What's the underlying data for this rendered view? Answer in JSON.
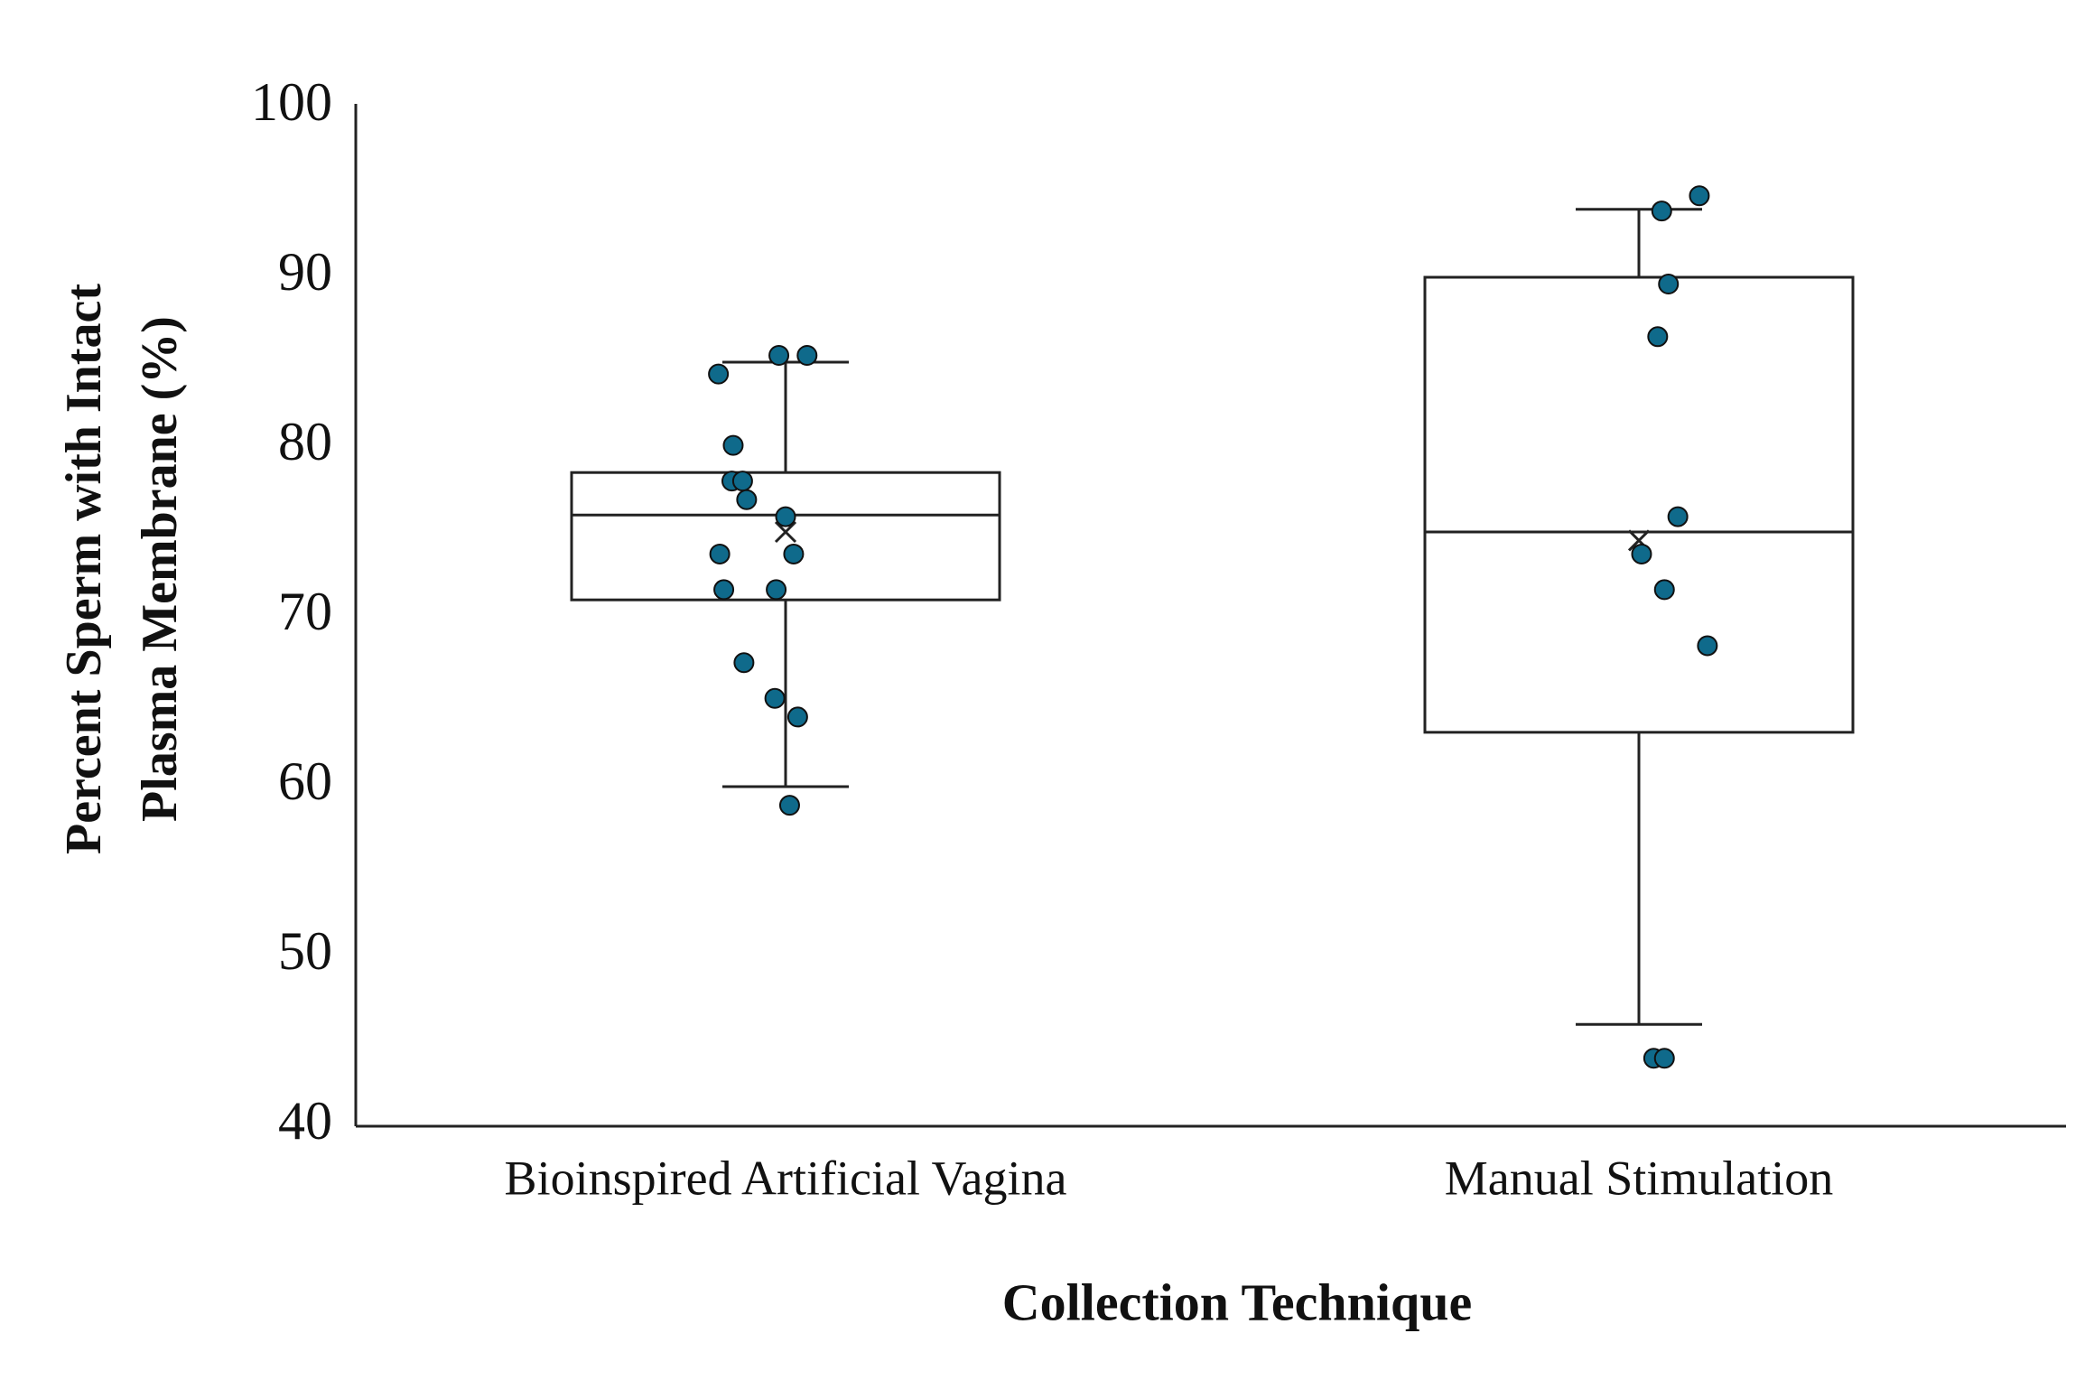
{
  "chart_data": {
    "type": "box",
    "xlabel": "Collection Technique",
    "ylabel": [
      "Percent Sperm with Intact",
      "Plasma Membrane (%)"
    ],
    "categories": [
      "Bioinspired Artificial Vagina",
      "Manual Stimulation"
    ],
    "boxes": [
      {
        "min": 60,
        "q1": 71,
        "median": 76,
        "q3": 78.5,
        "max": 85,
        "mean": 75,
        "points": [
          84.3,
          85.4,
          85.4,
          80.1,
          78.0,
          78.0,
          76.9,
          75.9,
          73.7,
          73.7,
          71.6,
          71.6,
          67.3,
          65.2,
          64.1,
          58.9
        ]
      },
      {
        "min": 46,
        "q1": 63.2,
        "median": 75,
        "q3": 90,
        "max": 94,
        "mean": 74.5,
        "points": [
          93.9,
          94.8,
          89.6,
          86.5,
          75.9,
          73.7,
          71.6,
          68.3,
          44.0,
          44.0
        ]
      }
    ],
    "point_color": "#0f6a8b",
    "ylim": [
      40,
      100
    ],
    "yticks": [
      40,
      50,
      60,
      70,
      80,
      90,
      100
    ],
    "grid": false
  }
}
